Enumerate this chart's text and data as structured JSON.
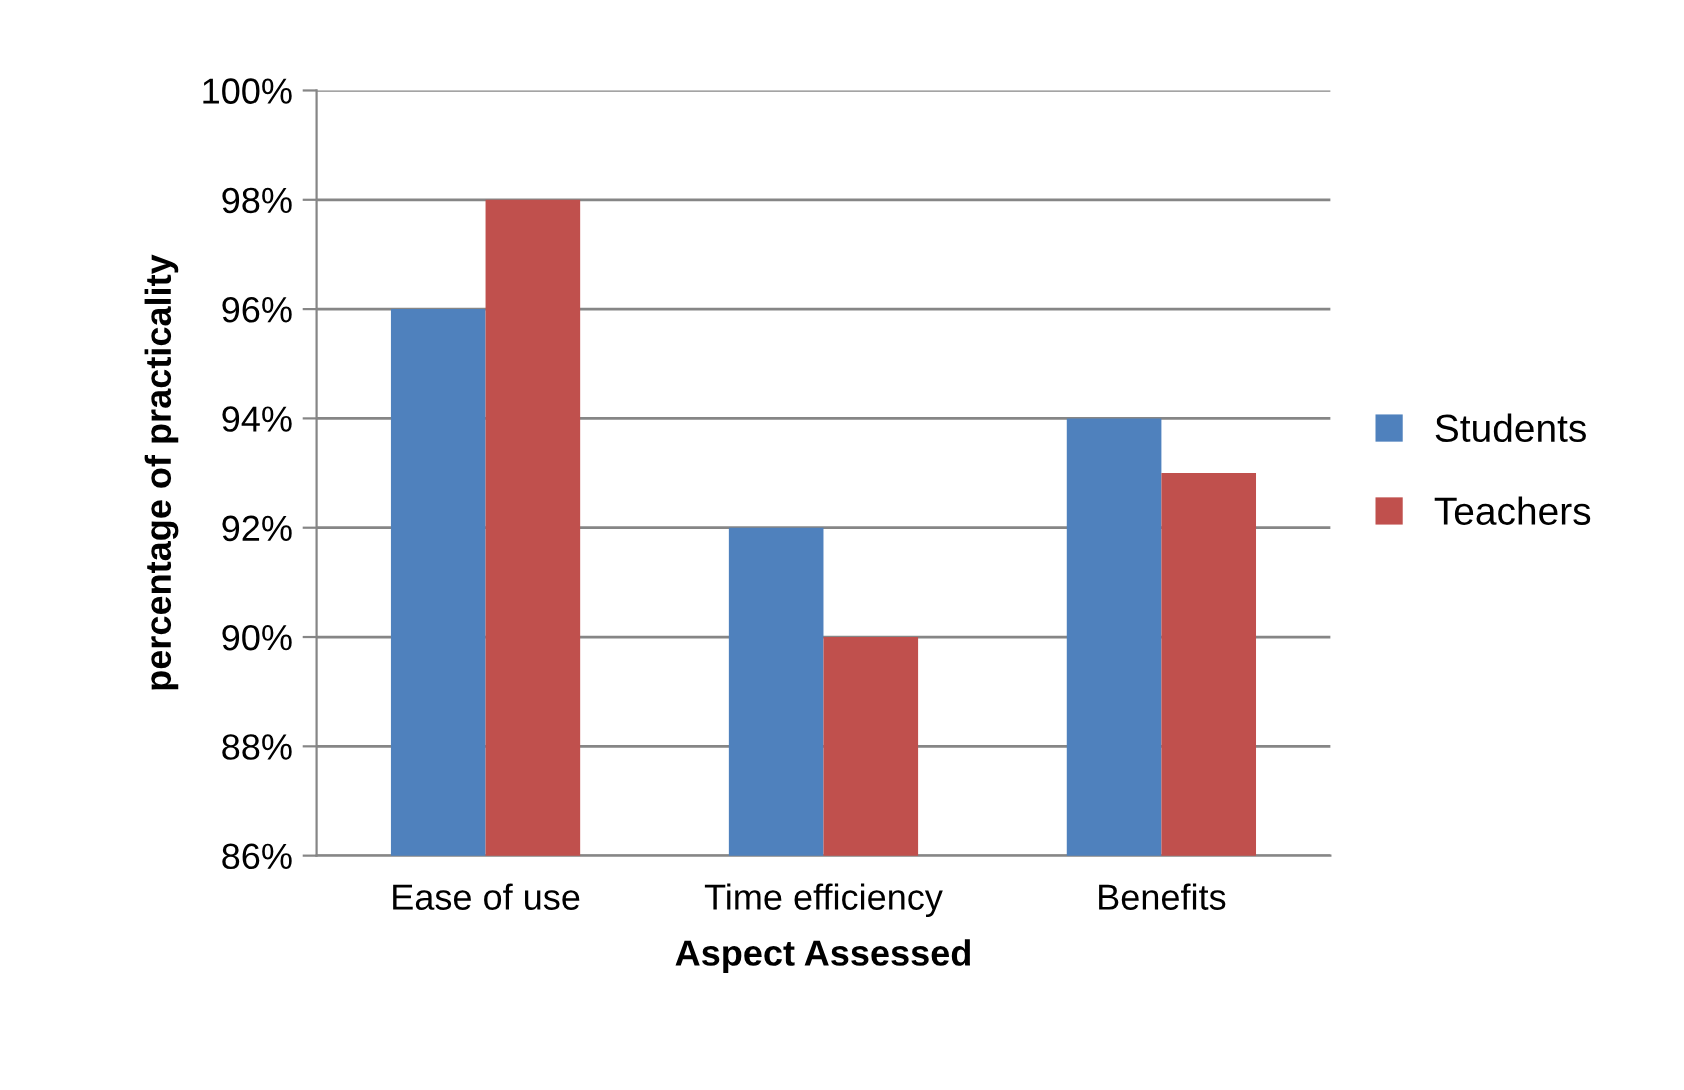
{
  "chart_data": {
    "type": "bar",
    "xlabel": "Aspect Assessed",
    "ylabel": "percentage of practicality",
    "categories": [
      "Ease of use",
      "Time efficiency",
      "Benefits"
    ],
    "series": [
      {
        "name": "Students",
        "color": "#4f81bd",
        "values": [
          96,
          92,
          94
        ]
      },
      {
        "name": "Teachers",
        "color": "#c0504d",
        "values": [
          98,
          90,
          93
        ]
      }
    ],
    "ylim": [
      86,
      100
    ],
    "yticks": [
      {
        "value": 86,
        "label": "86%"
      },
      {
        "value": 88,
        "label": "88%"
      },
      {
        "value": 90,
        "label": "90%"
      },
      {
        "value": 92,
        "label": "92%"
      },
      {
        "value": 94,
        "label": "94%"
      },
      {
        "value": 96,
        "label": "96%"
      },
      {
        "value": 98,
        "label": "98%"
      },
      {
        "value": 100,
        "label": "100%"
      }
    ],
    "grid": "y",
    "legend": "right"
  }
}
